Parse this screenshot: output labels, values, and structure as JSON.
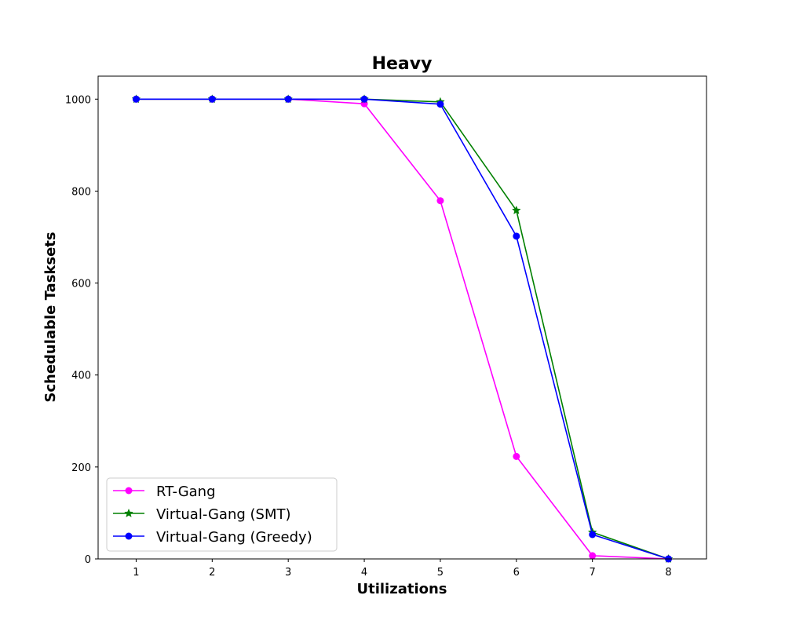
{
  "chart_data": {
    "type": "line",
    "title": "Heavy",
    "xlabel": "Utilizations",
    "ylabel": "Schedulable Tasksets",
    "x": [
      1,
      2,
      3,
      4,
      5,
      6,
      7,
      8
    ],
    "xlim": [
      0.5,
      8.5
    ],
    "ylim": [
      0,
      1050
    ],
    "xticks": [
      "1",
      "2",
      "3",
      "4",
      "5",
      "6",
      "7",
      "8"
    ],
    "yticks": [
      "0",
      "200",
      "400",
      "600",
      "800",
      "1000"
    ],
    "grid": false,
    "legend_position": "lower-left",
    "series": [
      {
        "name": "RT-Gang",
        "color": "#ff00ff",
        "marker": "circle",
        "values": [
          1000,
          1000,
          1000,
          990,
          779,
          223,
          7,
          0
        ]
      },
      {
        "name": "Virtual-Gang (SMT)",
        "color": "#008000",
        "marker": "star",
        "values": [
          1000,
          1000,
          1000,
          1000,
          994,
          758,
          58,
          0
        ]
      },
      {
        "name": "Virtual-Gang (Greedy)",
        "color": "#0000ff",
        "marker": "circle",
        "values": [
          1000,
          1000,
          1000,
          1000,
          989,
          702,
          53,
          0
        ]
      }
    ]
  }
}
